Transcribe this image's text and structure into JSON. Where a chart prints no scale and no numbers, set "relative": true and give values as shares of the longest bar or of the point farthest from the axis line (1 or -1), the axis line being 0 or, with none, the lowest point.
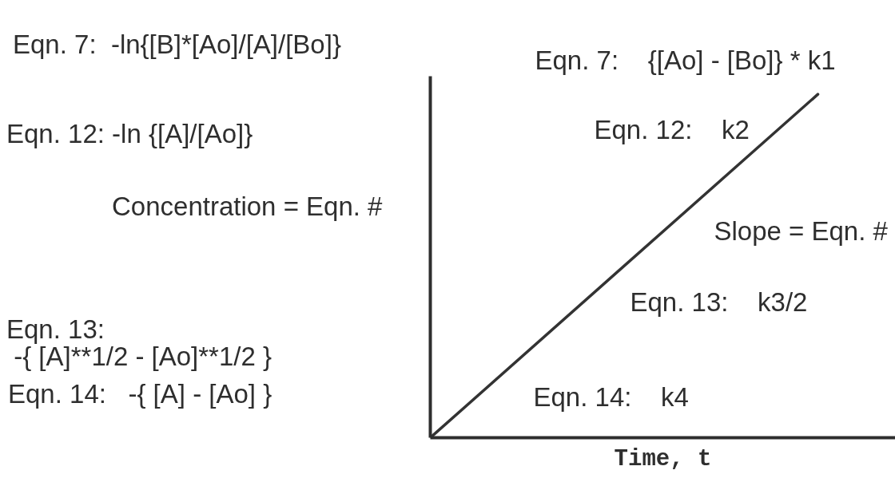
{
  "chart_data": {
    "type": "line",
    "relative": true,
    "tick_labels": false,
    "xlabel": "Time, t",
    "ylabel": "Concentration = Eqn. #",
    "categories": [
      null,
      null
    ],
    "series": [
      {
        "color": "#333333",
        "values": [
          0,
          1
        ]
      }
    ],
    "annotations": [
      "Eqn. 7:  -ln{[B]*[Ao]/[A]/[Bo]}",
      "Eqn. 12: -ln {[A]/[Ao]}",
      "Eqn. 13:\n -{ [A]**1/2 - [Ao]**1/2 }",
      "Eqn. 14:   -{ [A] - [Ao] }",
      "Eqn. 7:    {[Ao] - [Bo]} * k1",
      "Eqn. 12:    k2",
      "Slope = Eqn. #",
      "Eqn. 13:    k3/2",
      "Eqn. 14:    k4"
    ]
  }
}
